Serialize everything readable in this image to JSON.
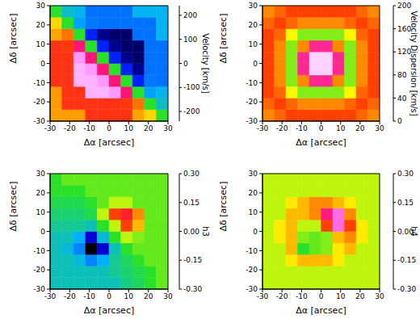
{
  "chart_data": [
    {
      "type": "heatmap",
      "xlabel": "Δα [arcsec]",
      "ylabel": "Δδ [arcsec]",
      "xlim": [
        -30,
        30
      ],
      "xticks": [
        -30,
        -20,
        -10,
        0,
        10,
        20,
        30
      ],
      "ylim": [
        -30,
        30
      ],
      "yticks": [
        -30,
        -20,
        -10,
        0,
        10,
        20,
        30
      ],
      "x_bins": [
        -30,
        -24,
        -18,
        -12,
        -6,
        0,
        6,
        12,
        18,
        24,
        30
      ],
      "y_bins": [
        -30,
        -24,
        -18,
        -12,
        -6,
        0,
        6,
        12,
        18,
        24,
        30
      ],
      "cells": [
        [
          90,
          90,
          90,
          130,
          130,
          130,
          130,
          87,
          71,
          0
        ],
        [
          90,
          130,
          130,
          130,
          130,
          130,
          126,
          103,
          0,
          -71
        ],
        [
          90,
          130,
          130,
          220,
          220,
          213,
          174,
          0,
          -103,
          -87
        ],
        [
          130,
          130,
          220,
          220,
          213,
          174,
          0,
          -174,
          -126,
          -130
        ],
        [
          130,
          130,
          220,
          213,
          174,
          0,
          -174,
          -213,
          -130,
          -130
        ],
        [
          130,
          130,
          213,
          174,
          0,
          -174,
          -213,
          -220,
          -130,
          -130
        ],
        [
          130,
          126,
          174,
          0,
          -174,
          -213,
          -220,
          -220,
          -130,
          -130
        ],
        [
          87,
          103,
          0,
          -174,
          -213,
          -220,
          -220,
          -130,
          -130,
          -90
        ],
        [
          71,
          0,
          -103,
          -126,
          -130,
          -130,
          -130,
          -130,
          -130,
          -90
        ],
        [
          0,
          -71,
          -87,
          -130,
          -130,
          -130,
          -130,
          -90,
          -90,
          -90
        ]
      ],
      "colorbar": {
        "label": "Velocity [km/s]",
        "range": [
          -240,
          240
        ],
        "ticks": [
          -200,
          -100,
          0,
          100,
          200
        ]
      }
    },
    {
      "type": "heatmap",
      "xlabel": "Δα [arcsec]",
      "ylabel": "Δδ [arcsec]",
      "xlim": [
        -30,
        30
      ],
      "xticks": [
        -30,
        -20,
        -10,
        0,
        10,
        20,
        30
      ],
      "ylim": [
        -30,
        30
      ],
      "yticks": [
        -30,
        -20,
        -10,
        0,
        10,
        20,
        30
      ],
      "x_bins": [
        -30,
        -24,
        -18,
        -12,
        -6,
        0,
        6,
        12,
        18,
        24,
        30
      ],
      "y_bins": [
        -30,
        -24,
        -18,
        -12,
        -6,
        0,
        6,
        12,
        18,
        24,
        30
      ],
      "cells": [
        [
          140,
          145,
          150,
          150,
          150,
          150,
          150,
          150,
          145,
          140
        ],
        [
          145,
          150,
          145,
          140,
          140,
          140,
          140,
          145,
          150,
          145
        ],
        [
          150,
          145,
          125,
          110,
          110,
          110,
          110,
          125,
          145,
          150
        ],
        [
          150,
          140,
          110,
          140,
          175,
          175,
          140,
          110,
          140,
          150
        ],
        [
          150,
          140,
          110,
          175,
          195,
          195,
          175,
          110,
          140,
          150
        ],
        [
          150,
          140,
          110,
          175,
          195,
          195,
          175,
          110,
          140,
          150
        ],
        [
          150,
          140,
          110,
          140,
          175,
          175,
          140,
          110,
          140,
          150
        ],
        [
          150,
          145,
          125,
          110,
          110,
          110,
          110,
          125,
          145,
          150
        ],
        [
          145,
          150,
          145,
          140,
          140,
          140,
          140,
          145,
          150,
          145
        ],
        [
          140,
          145,
          150,
          150,
          150,
          150,
          150,
          150,
          145,
          140
        ]
      ],
      "colorbar": {
        "label": "Velocity Dispersion [km/s]",
        "range": [
          0,
          200
        ],
        "ticks": [
          0,
          40,
          80,
          120,
          160,
          200
        ]
      }
    },
    {
      "type": "heatmap",
      "xlabel": "Δα [arcsec]",
      "ylabel": "Δδ [arcsec]",
      "xlim": [
        -30,
        30
      ],
      "xticks": [
        -30,
        -20,
        -10,
        0,
        10,
        20,
        30
      ],
      "ylim": [
        -30,
        30
      ],
      "yticks": [
        -30,
        -20,
        -10,
        0,
        10,
        20,
        30
      ],
      "x_bins": [
        -30,
        -24,
        -18,
        -12,
        -6,
        0,
        6,
        12,
        18,
        24,
        30
      ],
      "y_bins": [
        -30,
        -24,
        -18,
        -12,
        -6,
        0,
        6,
        12,
        18,
        24,
        30
      ],
      "cells": [
        [
          -0.08,
          -0.08,
          -0.08,
          -0.08,
          -0.08,
          -0.08,
          -0.05,
          -0.03,
          0.0,
          0.02
        ],
        [
          -0.08,
          -0.08,
          -0.08,
          -0.08,
          -0.08,
          -0.06,
          -0.04,
          -0.02,
          0.0,
          0.02
        ],
        [
          -0.08,
          -0.08,
          -0.1,
          -0.15,
          -0.12,
          -0.06,
          -0.03,
          0.0,
          0.02,
          0.02
        ],
        [
          -0.08,
          -0.1,
          -0.15,
          -0.3,
          -0.25,
          -0.08,
          0.0,
          0.02,
          0.02,
          0.02
        ],
        [
          -0.08,
          -0.08,
          -0.12,
          -0.25,
          -0.1,
          0.0,
          0.05,
          0.03,
          0.02,
          0.02
        ],
        [
          -0.06,
          -0.06,
          -0.06,
          -0.08,
          0.0,
          0.05,
          0.15,
          0.1,
          0.02,
          0.02
        ],
        [
          -0.04,
          -0.04,
          -0.04,
          -0.02,
          0.05,
          0.15,
          0.18,
          0.12,
          0.02,
          0.02
        ],
        [
          -0.02,
          -0.02,
          -0.02,
          0.0,
          0.02,
          0.05,
          0.05,
          0.02,
          0.02,
          0.02
        ],
        [
          0.0,
          0.0,
          0.0,
          0.02,
          0.02,
          0.02,
          0.02,
          0.02,
          0.02,
          0.02
        ],
        [
          0.0,
          0.02,
          0.02,
          0.02,
          0.02,
          0.02,
          0.02,
          0.02,
          0.02,
          0.02
        ]
      ],
      "colorbar": {
        "label": "h3",
        "range": [
          -0.3,
          0.3
        ],
        "ticks": [
          {
            "value": -0.3,
            "label": "-0.30"
          },
          {
            "value": -0.15,
            "label": "-0.15"
          },
          {
            "value": 0,
            "label": "0.00"
          },
          {
            "value": 0.15,
            "label": "0.15"
          },
          {
            "value": 0.3,
            "label": "0.30"
          }
        ]
      }
    },
    {
      "type": "heatmap",
      "xlabel": "Δα [arcsec]",
      "ylabel": "Δδ [arcsec]",
      "xlim": [
        -30,
        30
      ],
      "xticks": [
        -30,
        -20,
        -10,
        0,
        10,
        20,
        30
      ],
      "ylim": [
        -30,
        30
      ],
      "yticks": [
        -30,
        -20,
        -10,
        0,
        10,
        20,
        30
      ],
      "x_bins": [
        -30,
        -24,
        -18,
        -12,
        -6,
        0,
        6,
        12,
        18,
        24,
        30
      ],
      "y_bins": [
        -30,
        -24,
        -18,
        -12,
        -6,
        0,
        6,
        12,
        18,
        24,
        30
      ],
      "cells": [
        [
          0.05,
          0.05,
          0.05,
          0.05,
          0.05,
          0.05,
          0.05,
          0.05,
          0.05,
          0.05
        ],
        [
          0.05,
          0.05,
          0.05,
          0.05,
          0.05,
          0.05,
          0.05,
          0.05,
          0.05,
          0.05
        ],
        [
          0.05,
          0.05,
          0.08,
          0.1,
          0.1,
          0.1,
          0.08,
          0.05,
          0.05,
          0.05
        ],
        [
          0.05,
          0.05,
          0.1,
          0.0,
          0.02,
          0.03,
          0.08,
          0.1,
          0.05,
          0.05
        ],
        [
          0.05,
          0.08,
          0.1,
          0.03,
          0.02,
          0.03,
          0.1,
          0.12,
          0.08,
          0.05
        ],
        [
          0.05,
          0.08,
          0.1,
          0.05,
          0.05,
          0.15,
          0.25,
          0.15,
          0.08,
          0.05
        ],
        [
          0.05,
          0.05,
          0.1,
          0.1,
          0.12,
          0.22,
          0.25,
          0.12,
          0.05,
          0.05
        ],
        [
          0.05,
          0.05,
          0.08,
          0.1,
          0.12,
          0.12,
          0.1,
          0.08,
          0.05,
          0.05
        ],
        [
          0.05,
          0.05,
          0.05,
          0.05,
          0.05,
          0.05,
          0.05,
          0.05,
          0.05,
          0.05
        ],
        [
          0.05,
          0.05,
          0.05,
          0.05,
          0.05,
          0.05,
          0.05,
          0.05,
          0.05,
          0.05
        ]
      ],
      "colorbar": {
        "label": "h4",
        "range": [
          -0.3,
          0.3
        ],
        "ticks": [
          {
            "value": -0.3,
            "label": "-0.30"
          },
          {
            "value": -0.15,
            "label": "-0.15"
          },
          {
            "value": 0,
            "label": "0.00"
          },
          {
            "value": 0.15,
            "label": "0.15"
          },
          {
            "value": 0.3,
            "label": "0.30"
          }
        ]
      }
    }
  ]
}
